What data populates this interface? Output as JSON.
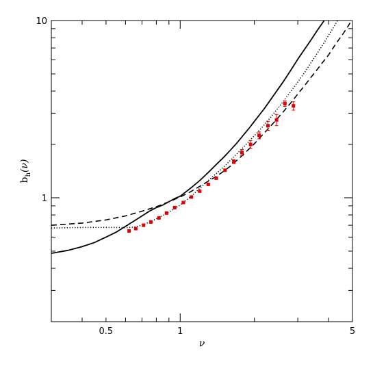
{
  "chart_data": {
    "type": "line",
    "title": "",
    "xlabel": "ν",
    "ylabel_main": "b",
    "ylabel_sub": "h",
    "ylabel_rest": "(ν)",
    "x_scale": "log",
    "y_scale": "log",
    "xlim": [
      0.3,
      5
    ],
    "ylim": [
      0.2,
      10
    ],
    "grid": false,
    "legend": "none",
    "x_ticks": [
      {
        "value": 0.5,
        "label": "0.5"
      },
      {
        "value": 1,
        "label": "1"
      },
      {
        "value": 5,
        "label": "5"
      }
    ],
    "y_ticks": [
      {
        "value": 1,
        "label": "1"
      },
      {
        "value": 10,
        "label": "10"
      }
    ],
    "series": [
      {
        "style": "solid",
        "color": "#000000",
        "x": [
          0.3,
          0.35,
          0.4,
          0.45,
          0.5,
          0.55,
          0.6,
          0.65,
          0.7,
          0.75,
          0.8,
          0.85,
          0.9,
          0.95,
          1.0,
          1.1,
          1.2,
          1.3,
          1.4,
          1.5,
          1.6,
          1.7,
          1.8,
          1.9,
          2.0,
          2.2,
          2.4,
          2.6,
          2.8,
          3.0,
          3.2,
          3.4,
          3.6,
          3.8,
          4.0,
          4.2
        ],
        "y": [
          0.486,
          0.505,
          0.53,
          0.56,
          0.6,
          0.64,
          0.69,
          0.74,
          0.79,
          0.84,
          0.88,
          0.91,
          0.95,
          0.99,
          1.02,
          1.13,
          1.25,
          1.39,
          1.54,
          1.69,
          1.86,
          2.04,
          2.25,
          2.46,
          2.7,
          3.2,
          3.8,
          4.45,
          5.2,
          6.05,
          6.9,
          7.8,
          8.8,
          9.8,
          10.9,
          12.0
        ]
      },
      {
        "style": "dashed",
        "color": "#000000",
        "x": [
          0.3,
          0.4,
          0.5,
          0.6,
          0.7,
          0.8,
          0.9,
          1.0,
          1.1,
          1.2,
          1.3,
          1.4,
          1.5,
          1.6,
          1.8,
          2.0,
          2.2,
          2.4,
          2.6,
          2.8,
          3.0,
          3.2,
          3.4,
          3.6,
          3.8,
          4.0,
          4.2,
          4.4,
          4.6,
          4.8,
          5.0
        ],
        "y": [
          0.7,
          0.72,
          0.75,
          0.79,
          0.84,
          0.89,
          0.95,
          1.01,
          1.08,
          1.16,
          1.24,
          1.32,
          1.41,
          1.51,
          1.75,
          2.02,
          2.33,
          2.66,
          3.02,
          3.41,
          3.85,
          4.3,
          4.8,
          5.3,
          5.85,
          6.4,
          7.1,
          7.8,
          8.5,
          9.3,
          10.2
        ]
      },
      {
        "style": "dotted",
        "color": "#000000",
        "x": [
          0.3,
          0.4,
          0.5,
          0.55,
          0.6,
          0.65,
          0.7,
          0.75,
          0.8,
          0.9,
          1.0,
          1.1,
          1.2,
          1.3,
          1.4,
          1.5,
          1.6,
          1.8,
          2.0,
          2.2,
          2.4,
          2.6,
          2.8,
          3.0,
          3.2,
          3.4,
          3.6,
          3.8,
          4.0,
          4.2,
          4.4
        ],
        "y": [
          0.675,
          0.68,
          0.68,
          0.68,
          0.678,
          0.683,
          0.7,
          0.73,
          0.76,
          0.83,
          0.91,
          1.01,
          1.13,
          1.25,
          1.37,
          1.49,
          1.63,
          1.92,
          2.24,
          2.59,
          3.0,
          3.45,
          3.95,
          4.5,
          5.1,
          5.8,
          6.55,
          7.35,
          8.25,
          9.2,
          10.3
        ]
      },
      {
        "style": "points",
        "color": "#e00000",
        "x": [
          0.62,
          0.66,
          0.71,
          0.76,
          0.82,
          0.88,
          0.95,
          1.03,
          1.11,
          1.2,
          1.3,
          1.4,
          1.52,
          1.65,
          1.78,
          1.93,
          2.09,
          2.27,
          2.46,
          2.66,
          2.88
        ],
        "y": [
          0.65,
          0.67,
          0.7,
          0.73,
          0.77,
          0.82,
          0.88,
          0.94,
          1.01,
          1.09,
          1.19,
          1.29,
          1.43,
          1.6,
          1.8,
          2.0,
          2.25,
          2.55,
          2.75,
          3.4,
          3.3
        ],
        "yerr": [
          0.0,
          0.0,
          0.01,
          0.01,
          0.01,
          0.01,
          0.01,
          0.01,
          0.01,
          0.01,
          0.01,
          0.02,
          0.02,
          0.04,
          0.07,
          0.1,
          0.1,
          0.15,
          0.2,
          0.12,
          0.18
        ]
      }
    ]
  }
}
